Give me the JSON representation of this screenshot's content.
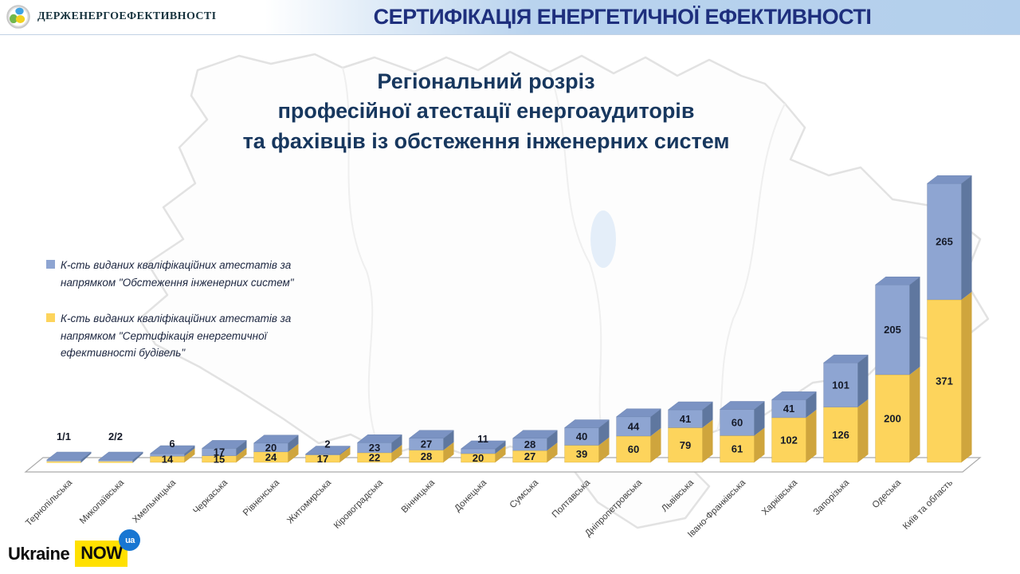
{
  "header": {
    "agency": "Держенергоефективності",
    "title": "СЕРТИФІКАЦІЯ ЕНЕРГЕТИЧНОЇ ЕФЕКТИВНОСТІ"
  },
  "footer": {
    "brand_left": "Ukraine",
    "brand_highlight": "NOW",
    "brand_badge": "ua"
  },
  "colors": {
    "header_title": "#1e2f7d",
    "chart_title": "#17375e",
    "value_label": "#151a28",
    "region_label": "#3f3f3f",
    "footer_yellow": "#ffe000",
    "footer_blue": "#1876d2"
  },
  "chart_data": {
    "type": "bar",
    "variant": "3d-stacked",
    "title": "Регіональний розріз\nпрофесійної атестації енергоаудиторів\nта фахівців із обстеження інженерних систем",
    "legend_position": "left",
    "grid": false,
    "legend": [
      {
        "label": "К-сть виданих кваліфікаційних атестатів за\nнапрямком \"Обстеження інженерних систем\""
      },
      {
        "label": "К-сть виданих кваліфікаційних атестатів за\nнапрямком \"Сертифікація енергетичної\nефективності будівель\""
      }
    ],
    "categories": [
      "Тернопільська",
      "Миколаївська",
      "Хмельницька",
      "Черкаська",
      "Рівненська",
      "Житомирська",
      "Кіровоградська",
      "Вінницька",
      "Донецька",
      "Сумська",
      "Полтавська",
      "Дніпропетровська",
      "Львівська",
      "Івано-Франківська",
      "Харківська",
      "Запорізька",
      "Одеська",
      "Київ та область"
    ],
    "series": [
      {
        "name": "Обстеження інженерних систем",
        "stack_order": "top",
        "color_front": "#8ea5d2",
        "color_side": "#5f779f",
        "color_top": "#7b93c3",
        "values": [
          1,
          2,
          6,
          17,
          20,
          2,
          23,
          27,
          11,
          28,
          40,
          44,
          41,
          60,
          41,
          101,
          205,
          265
        ]
      },
      {
        "name": "Сертифікація енергетичної ефективності будівель",
        "stack_order": "bottom",
        "color_front": "#fdd45c",
        "color_side": "#cfa53d",
        "color_top": "#e7c04a",
        "values": [
          1,
          2,
          14,
          15,
          24,
          17,
          22,
          28,
          20,
          27,
          39,
          60,
          79,
          61,
          102,
          126,
          200,
          371
        ]
      }
    ],
    "combined_labels": {
      "0": "1/1",
      "1": "2/2"
    }
  }
}
